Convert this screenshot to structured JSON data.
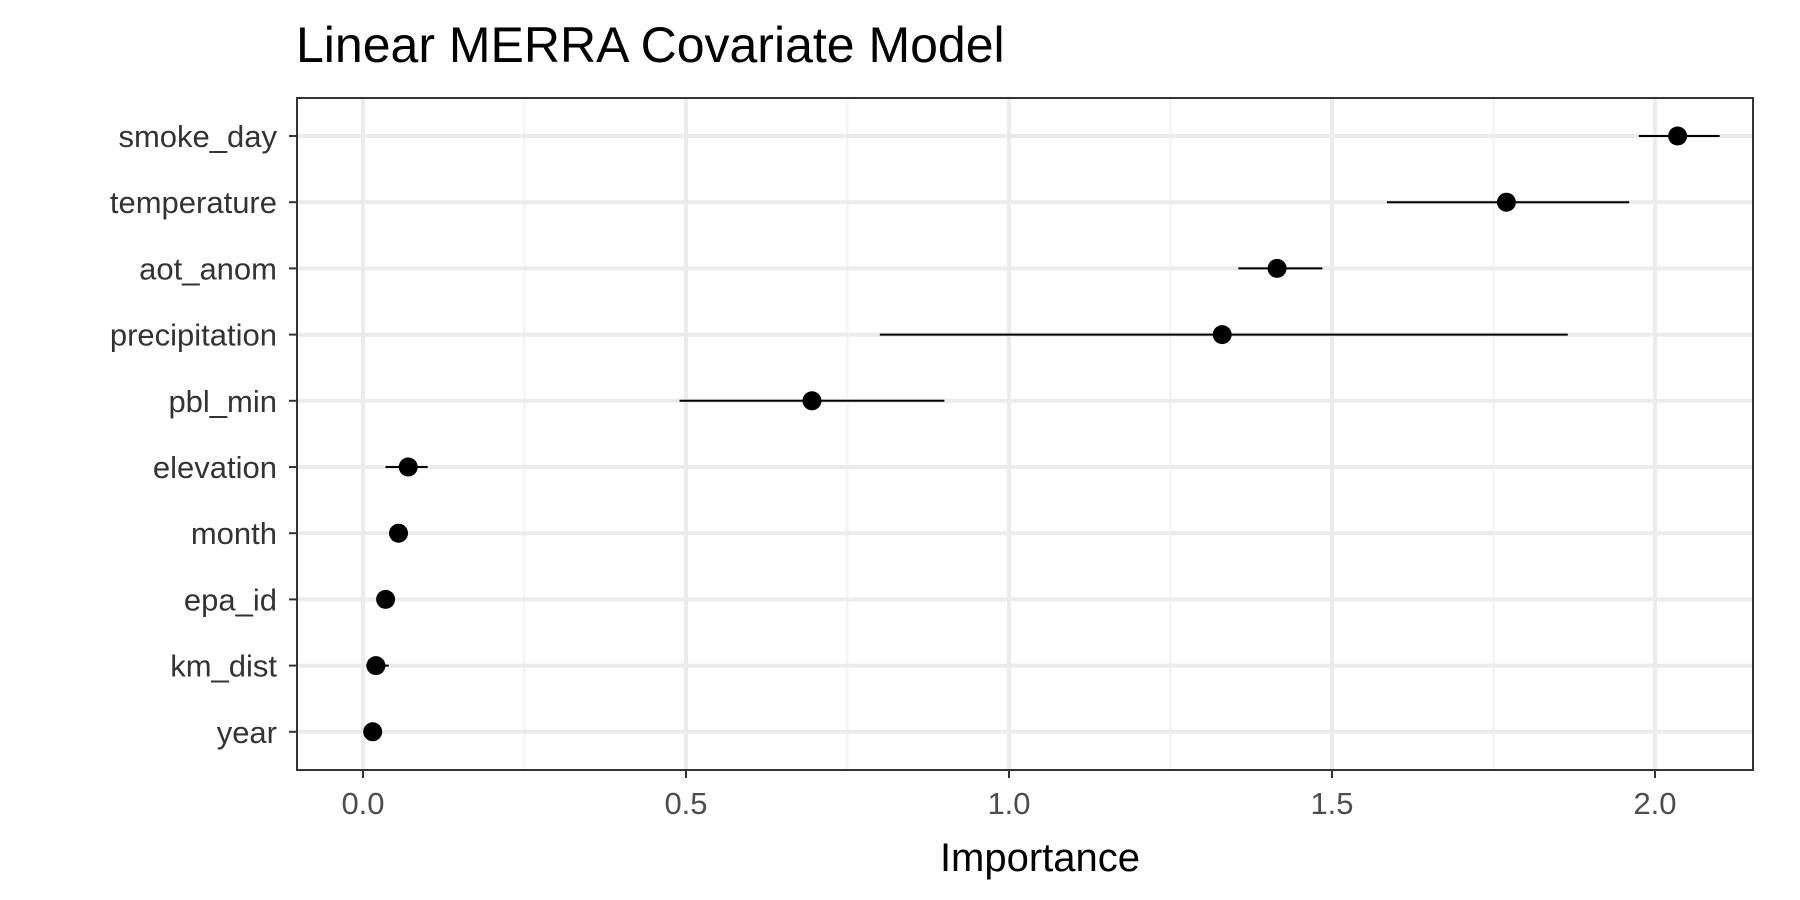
{
  "chart_data": {
    "type": "scatter",
    "title": "Linear MERRA Covariate Model",
    "xlabel": "Importance",
    "ylabel": "",
    "xlim": [
      -0.1,
      2.2
    ],
    "xticks": [
      0.0,
      0.5,
      1.0,
      1.5,
      2.0
    ],
    "xtick_labels": [
      "0.0",
      "0.5",
      "1.0",
      "1.5",
      "2.0"
    ],
    "grid": true,
    "legend": "none",
    "categories": [
      "smoke_day",
      "temperature",
      "aot_anom",
      "precipitation",
      "pbl_min",
      "elevation",
      "month",
      "epa_id",
      "km_dist",
      "year"
    ],
    "values": [
      2.035,
      1.77,
      1.415,
      1.33,
      0.695,
      0.07,
      0.055,
      0.035,
      0.02,
      0.015
    ],
    "error_low": [
      1.975,
      1.585,
      1.355,
      0.8,
      0.49,
      0.035,
      0.05,
      0.03,
      0.005,
      0.01
    ],
    "error_high": [
      2.1,
      1.96,
      1.485,
      1.865,
      0.9,
      0.1,
      0.06,
      0.04,
      0.04,
      0.02
    ],
    "colors": {
      "point": "#000000",
      "error_bar": "#000000",
      "panel_border": "#333333",
      "major_grid": "#ebebeb",
      "minor_grid": "#f2f2f2",
      "tick": "#333333"
    }
  }
}
